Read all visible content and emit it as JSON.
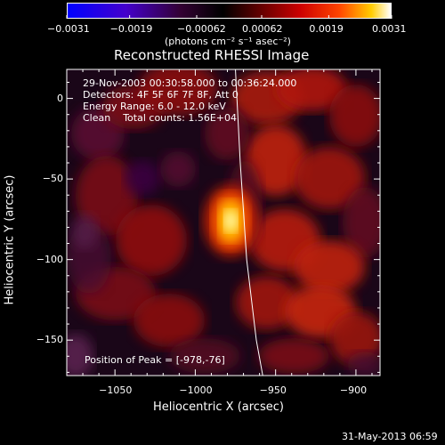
{
  "chart_data": {
    "type": "heatmap",
    "title": "Reconstructed RHESSI Image",
    "xlabel": "Heliocentric X (arcsec)",
    "ylabel": "Heliocentric Y (arcsec)",
    "xlim": [
      -1080,
      -885
    ],
    "ylim": [
      -172,
      18
    ],
    "x_ticks": [
      -1050,
      -1000,
      -950,
      -900
    ],
    "y_ticks": [
      0,
      -50,
      -100,
      -150
    ],
    "x_tick_labels": [
      "−1050",
      "−1000",
      "−950",
      "−900"
    ],
    "y_tick_labels": [
      "0",
      "−50",
      "−100",
      "−150"
    ],
    "colorbar": {
      "range": [
        -0.0031,
        0.0031
      ],
      "ticks": [
        -0.0031,
        -0.0019,
        -0.00062,
        0.00062,
        0.0019,
        0.0031
      ],
      "tick_labels": [
        "−0.0031",
        "−0.0019",
        "−0.00062",
        "0.00062",
        "0.0019",
        "0.0031"
      ],
      "unit_label": "(photons cm⁻² s⁻¹ asec⁻²)"
    },
    "annotations": [
      "29-Nov-2003 00:30:58.000 to 00:36:24.000",
      "Detectors: 4F 5F 6F 7F 8F, Att 0",
      "Energy Range: 6.0 - 12.0 keV",
      "Clean    Total counts: 1.56E+04"
    ],
    "peak_label": "Position of Peak = [-978,-76]",
    "peak": {
      "x": -978,
      "y": -76
    },
    "limb_curve": [
      [
        -975,
        18
      ],
      [
        -972,
        -40
      ],
      [
        -968,
        -100
      ],
      [
        -962,
        -150
      ],
      [
        -958,
        -172
      ]
    ],
    "footer_timestamp": "31-May-2013 06:59"
  }
}
